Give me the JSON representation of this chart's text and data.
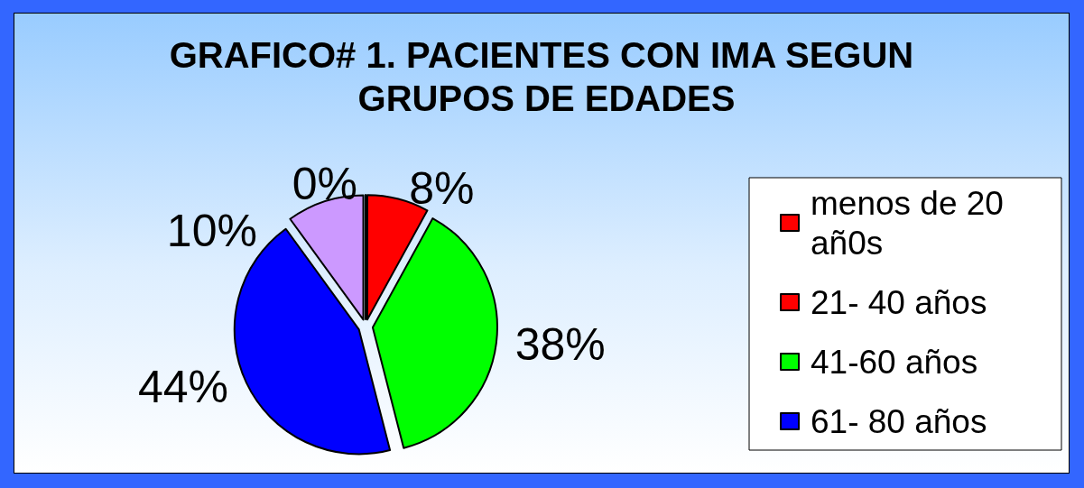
{
  "chart_data": {
    "type": "pie",
    "title": "GRAFICO# 1. PACIENTES CON IMA SEGUN GRUPOS DE EDADES",
    "categories": [
      "menos de 20 añ0s",
      "21- 40 años",
      "41-60 años",
      "61- 80 años",
      null
    ],
    "values": [
      0,
      8,
      38,
      44,
      10
    ],
    "colors": [
      "#ff0000",
      "#ff0000",
      "#00ff00",
      "#0000ff",
      "#cc99ff"
    ],
    "value_labels": [
      "0%",
      "8%",
      "38%",
      "44%",
      "10%"
    ],
    "legend": "right"
  }
}
